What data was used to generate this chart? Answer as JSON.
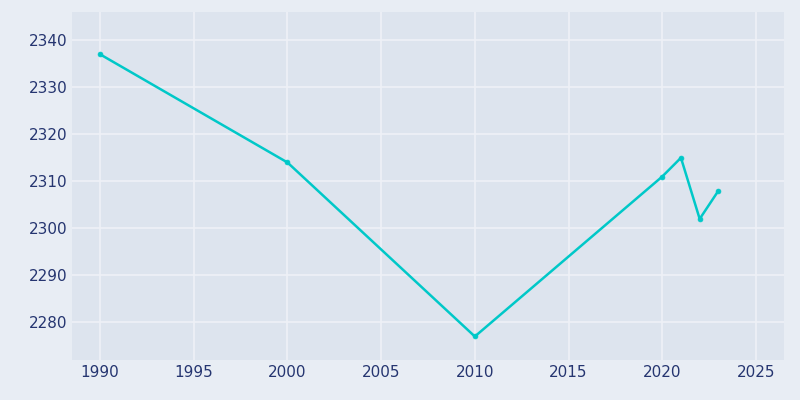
{
  "years": [
    1990,
    2000,
    2010,
    2020,
    2021,
    2022,
    2023
  ],
  "population": [
    2337,
    2314,
    2277,
    2311,
    2315,
    2302,
    2308
  ],
  "line_color": "#00c8c8",
  "marker_color": "#00c8c8",
  "fig_bg_color": "#e8edf4",
  "plot_bg_color": "#dde4ee",
  "grid_color": "#eef1f7",
  "tick_color": "#253570",
  "xlim": [
    1988.5,
    2026.5
  ],
  "ylim": [
    2272,
    2346
  ],
  "xticks": [
    1990,
    1995,
    2000,
    2005,
    2010,
    2015,
    2020,
    2025
  ],
  "yticks": [
    2280,
    2290,
    2300,
    2310,
    2320,
    2330,
    2340
  ],
  "line_width": 1.8,
  "marker_size": 3.5,
  "tick_fontsize": 11
}
